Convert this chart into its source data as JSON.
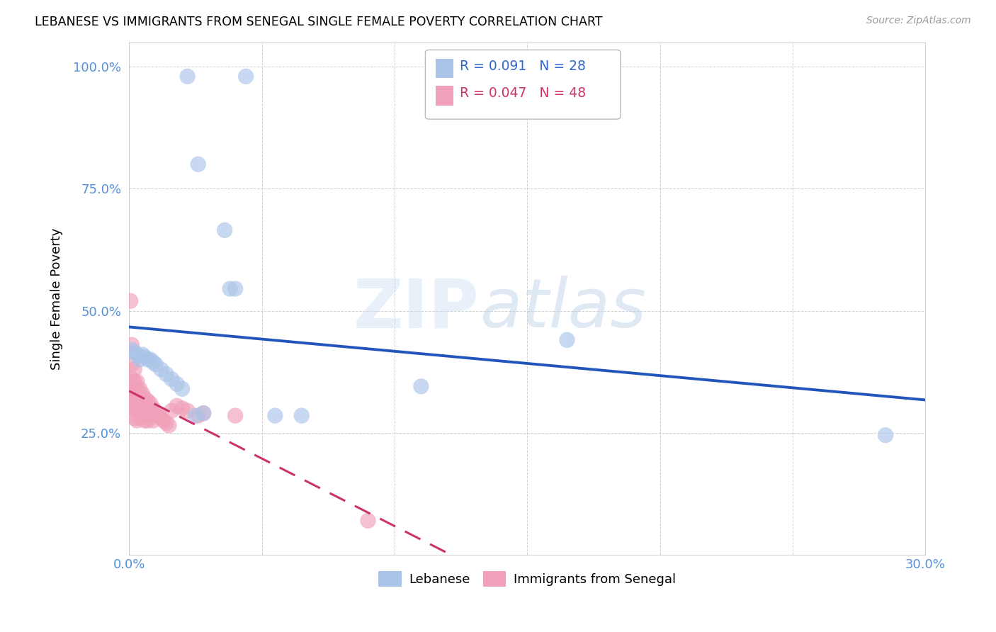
{
  "title": "LEBANESE VS IMMIGRANTS FROM SENEGAL SINGLE FEMALE POVERTY CORRELATION CHART",
  "source": "Source: ZipAtlas.com",
  "ylabel": "Single Female Poverty",
  "xlim": [
    0.0,
    0.3
  ],
  "ylim": [
    0.0,
    1.05
  ],
  "xticks": [
    0.0,
    0.05,
    0.1,
    0.15,
    0.2,
    0.25,
    0.3
  ],
  "xticklabels": [
    "0.0%",
    "",
    "",
    "",
    "",
    "",
    "30.0%"
  ],
  "yticks": [
    0.0,
    0.25,
    0.5,
    0.75,
    1.0
  ],
  "yticklabels": [
    "",
    "25.0%",
    "50.0%",
    "75.0%",
    "100.0%"
  ],
  "legend1_label": "Lebanese",
  "legend2_label": "Immigrants from Senegal",
  "r1": 0.091,
  "n1": 28,
  "r2": 0.047,
  "n2": 48,
  "color_blue": "#aac4e8",
  "color_pink": "#f0a0b8",
  "line_blue": "#2255bb",
  "line_pink": "#cc3366",
  "lebanese_x": [
    0.022,
    0.044,
    0.026,
    0.036,
    0.038,
    0.04,
    0.001,
    0.002,
    0.003,
    0.004,
    0.005,
    0.006,
    0.007,
    0.008,
    0.009,
    0.01,
    0.012,
    0.014,
    0.016,
    0.018,
    0.02,
    0.025,
    0.028,
    0.055,
    0.065,
    0.11,
    0.165,
    0.285
  ],
  "lebanese_y": [
    0.98,
    0.98,
    0.8,
    0.665,
    0.545,
    0.545,
    0.42,
    0.415,
    0.41,
    0.4,
    0.41,
    0.405,
    0.4,
    0.4,
    0.395,
    0.39,
    0.38,
    0.37,
    0.36,
    0.35,
    0.34,
    0.285,
    0.29,
    0.285,
    0.285,
    0.345,
    0.44,
    0.245
  ],
  "senegal_x": [
    0.0005,
    0.001,
    0.001,
    0.001,
    0.001,
    0.001,
    0.002,
    0.002,
    0.002,
    0.002,
    0.002,
    0.002,
    0.003,
    0.003,
    0.003,
    0.003,
    0.003,
    0.004,
    0.004,
    0.004,
    0.004,
    0.005,
    0.005,
    0.005,
    0.006,
    0.006,
    0.006,
    0.007,
    0.007,
    0.007,
    0.008,
    0.008,
    0.009,
    0.009,
    0.01,
    0.011,
    0.012,
    0.013,
    0.014,
    0.015,
    0.016,
    0.018,
    0.02,
    0.022,
    0.026,
    0.028,
    0.04,
    0.09
  ],
  "senegal_y": [
    0.52,
    0.43,
    0.39,
    0.36,
    0.33,
    0.3,
    0.38,
    0.355,
    0.34,
    0.32,
    0.3,
    0.28,
    0.355,
    0.34,
    0.32,
    0.3,
    0.275,
    0.34,
    0.32,
    0.3,
    0.28,
    0.33,
    0.31,
    0.285,
    0.32,
    0.3,
    0.275,
    0.315,
    0.3,
    0.275,
    0.31,
    0.285,
    0.3,
    0.275,
    0.29,
    0.285,
    0.28,
    0.275,
    0.27,
    0.265,
    0.295,
    0.305,
    0.3,
    0.295,
    0.285,
    0.29,
    0.285,
    0.07
  ]
}
